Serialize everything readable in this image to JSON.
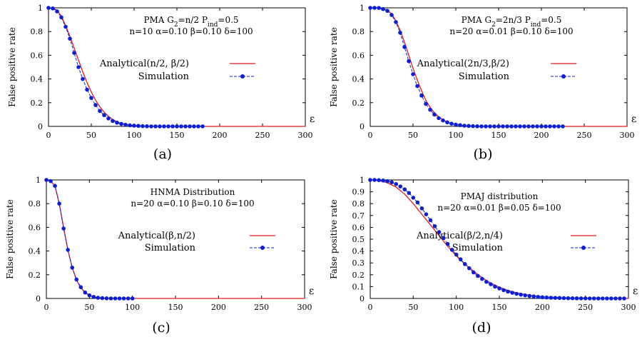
{
  "chart_data": [
    {
      "panel": "a",
      "type": "line",
      "caption": "(a)",
      "annotation_lines": [
        [
          "PMA  G",
          {
            "sub": "2"
          },
          "=n/2 P",
          {
            "sub": "ind"
          },
          "=0.5"
        ],
        [
          "n=10 α=0.10 β=0.10 δ=100"
        ]
      ],
      "xlabel": "ε",
      "ylabel": "False positive rate",
      "xlim": [
        0,
        300
      ],
      "ylim": [
        0,
        1
      ],
      "xticks": [
        0,
        50,
        100,
        150,
        200,
        250,
        300
      ],
      "yticks": [
        0,
        0.2,
        0.4,
        0.6,
        0.8,
        1
      ],
      "ytick_labels": [
        "0",
        "0.2",
        "0.4",
        "0.6",
        "0.8",
        "1"
      ],
      "legend": "right",
      "series": [
        {
          "name": "Analytical(n/2, β/2)",
          "kind": "line",
          "color": "#e31a1c",
          "x": [
            0,
            5,
            10,
            15,
            20,
            25,
            30,
            35,
            40,
            45,
            50,
            55,
            60,
            65,
            70,
            75,
            80,
            85,
            90,
            95,
            100,
            110,
            120,
            140,
            160,
            200,
            250,
            300
          ],
          "y": [
            1.0,
            0.997,
            0.98,
            0.93,
            0.85,
            0.76,
            0.66,
            0.56,
            0.46,
            0.37,
            0.29,
            0.22,
            0.165,
            0.12,
            0.085,
            0.058,
            0.039,
            0.025,
            0.016,
            0.01,
            0.006,
            0.002,
            0.0,
            0.0,
            0.0,
            0.0,
            0.0,
            0.0
          ]
        },
        {
          "name": "Simulation",
          "kind": "points",
          "color": "#0a1fd6",
          "x": [
            0,
            5,
            10,
            15,
            20,
            25,
            30,
            35,
            40,
            45,
            50,
            55,
            60,
            65,
            70,
            75,
            80,
            85,
            90,
            95,
            100,
            105,
            110,
            115,
            120,
            125,
            130,
            135,
            140,
            145,
            150,
            155,
            160,
            165,
            170,
            175,
            180
          ],
          "y": [
            1.0,
            0.995,
            0.97,
            0.92,
            0.84,
            0.74,
            0.62,
            0.5,
            0.4,
            0.31,
            0.24,
            0.18,
            0.13,
            0.095,
            0.067,
            0.046,
            0.031,
            0.021,
            0.014,
            0.009,
            0.006,
            0.004,
            0.002,
            0.001,
            0.0,
            0.0,
            0.0,
            0.0,
            0.0,
            0.0,
            0.0,
            0.0,
            0.0,
            0.0,
            0.0,
            0.0,
            0.0
          ]
        }
      ]
    },
    {
      "panel": "b",
      "type": "line",
      "caption": "(b)",
      "annotation_lines": [
        [
          "PMA  G",
          {
            "sub": "2"
          },
          "=2n/3 P",
          {
            "sub": "ind"
          },
          "=0.5"
        ],
        [
          "n=20 α=0.01 β=0.10 δ=100"
        ]
      ],
      "xlabel": "ε",
      "ylabel": "False positive rate",
      "xlim": [
        0,
        300
      ],
      "ylim": [
        0,
        1
      ],
      "xticks": [
        0,
        50,
        100,
        150,
        200,
        250,
        300
      ],
      "yticks": [
        0,
        0.2,
        0.4,
        0.6,
        0.8,
        1
      ],
      "ytick_labels": [
        "0",
        "0.2",
        "0.4",
        "0.6",
        "0.8",
        "1"
      ],
      "legend": "right",
      "series": [
        {
          "name": "Analytical(2n/3,β/2)",
          "kind": "line",
          "color": "#e31a1c",
          "x": [
            0,
            10,
            20,
            25,
            30,
            35,
            40,
            45,
            50,
            55,
            60,
            65,
            70,
            75,
            80,
            85,
            90,
            95,
            100,
            110,
            120,
            130,
            140,
            160,
            200,
            250,
            300
          ],
          "y": [
            1.0,
            0.998,
            0.98,
            0.95,
            0.89,
            0.81,
            0.71,
            0.6,
            0.49,
            0.39,
            0.3,
            0.22,
            0.16,
            0.115,
            0.08,
            0.055,
            0.036,
            0.023,
            0.015,
            0.006,
            0.002,
            0.0,
            0.0,
            0.0,
            0.0,
            0.0,
            0.0
          ]
        },
        {
          "name": "Simulation",
          "kind": "points",
          "color": "#0a1fd6",
          "x": [
            0,
            5,
            10,
            15,
            20,
            25,
            30,
            35,
            40,
            45,
            50,
            55,
            60,
            65,
            70,
            75,
            80,
            85,
            90,
            95,
            100,
            105,
            110,
            115,
            120,
            125,
            130,
            135,
            140,
            145,
            150,
            155,
            160,
            165,
            170,
            175,
            180,
            185,
            190,
            195,
            200,
            205,
            210,
            215,
            220,
            225
          ],
          "y": [
            1.0,
            1.0,
            0.999,
            0.99,
            0.975,
            0.94,
            0.88,
            0.79,
            0.67,
            0.55,
            0.44,
            0.34,
            0.26,
            0.19,
            0.14,
            0.1,
            0.07,
            0.05,
            0.034,
            0.023,
            0.015,
            0.01,
            0.006,
            0.004,
            0.002,
            0.001,
            0.0,
            0.0,
            0.0,
            0.0,
            0.0,
            0.0,
            0.0,
            0.0,
            0.0,
            0.0,
            0.0,
            0.0,
            0.0,
            0.0,
            0.0,
            0.0,
            0.0,
            0.0,
            0.0,
            0.0
          ]
        }
      ]
    },
    {
      "panel": "c",
      "type": "line",
      "caption": "(c)",
      "annotation_lines": [
        [
          "HNMA Distribution"
        ],
        [
          "n=20 α=0.10 β=0.10 δ=100"
        ]
      ],
      "xlabel": "ε",
      "ylabel": "False positive rate",
      "xlim": [
        0,
        300
      ],
      "ylim": [
        0,
        1
      ],
      "xticks": [
        0,
        50,
        100,
        150,
        200,
        250,
        300
      ],
      "yticks": [
        0,
        0.2,
        0.4,
        0.6,
        0.8,
        1
      ],
      "ytick_labels": [
        "0",
        "0.2",
        "0.4",
        "0.6",
        "0.8",
        "1"
      ],
      "legend": "right",
      "series": [
        {
          "name": "Analytical(β,n/2)",
          "kind": "line",
          "color": "#e31a1c",
          "x": [
            0,
            5,
            10,
            15,
            20,
            25,
            30,
            35,
            40,
            45,
            50,
            55,
            60,
            70,
            80,
            100,
            150,
            200,
            250,
            300
          ],
          "y": [
            1.0,
            0.99,
            0.95,
            0.8,
            0.6,
            0.41,
            0.26,
            0.155,
            0.09,
            0.05,
            0.026,
            0.013,
            0.006,
            0.0015,
            0.0,
            0.0,
            0.0,
            0.0,
            0.0,
            0.0
          ]
        },
        {
          "name": "Simulation",
          "kind": "points",
          "color": "#0a1fd6",
          "x": [
            0,
            5,
            10,
            15,
            20,
            25,
            30,
            35,
            40,
            45,
            50,
            55,
            60,
            65,
            70,
            75,
            80,
            85,
            90,
            95,
            100
          ],
          "y": [
            1.0,
            0.99,
            0.95,
            0.8,
            0.59,
            0.41,
            0.26,
            0.16,
            0.095,
            0.05,
            0.026,
            0.013,
            0.006,
            0.003,
            0.001,
            0.0,
            0.0,
            0.0,
            0.0,
            0.0,
            0.0
          ]
        }
      ]
    },
    {
      "panel": "d",
      "type": "line",
      "caption": "(d)",
      "annotation_lines": [
        [
          "PMAJ distribution"
        ],
        [
          "n=20 α=0.01 β=0.05 δ=100"
        ]
      ],
      "xlabel": "ε",
      "ylabel": "False positive rate",
      "xlim": [
        0,
        300
      ],
      "ylim": [
        0,
        1
      ],
      "xticks": [
        0,
        50,
        100,
        150,
        200,
        250,
        300
      ],
      "yticks": [
        0,
        0.1,
        0.2,
        0.3,
        0.4,
        0.5,
        0.6,
        0.7,
        0.8,
        0.9,
        1
      ],
      "ytick_labels": [
        "0",
        "0.1",
        "0.2",
        "0.3",
        "0.4",
        "0.5",
        "0.6",
        "0.7",
        "0.8",
        "0.9",
        "1"
      ],
      "legend": "right",
      "series": [
        {
          "name": "Analytical(β/2,n/4)",
          "kind": "line",
          "color": "#e31a1c",
          "x": [
            0,
            10,
            20,
            30,
            40,
            50,
            60,
            70,
            80,
            90,
            100,
            110,
            120,
            130,
            140,
            150,
            160,
            170,
            180,
            190,
            200,
            220,
            250,
            300
          ],
          "y": [
            1.0,
            0.995,
            0.975,
            0.94,
            0.88,
            0.8,
            0.71,
            0.62,
            0.53,
            0.44,
            0.36,
            0.29,
            0.23,
            0.175,
            0.13,
            0.095,
            0.068,
            0.048,
            0.033,
            0.022,
            0.014,
            0.006,
            0.001,
            0.0
          ]
        },
        {
          "name": "Simulation",
          "kind": "points",
          "color": "#0a1fd6",
          "x": [
            0,
            5,
            10,
            15,
            20,
            25,
            30,
            35,
            40,
            45,
            50,
            55,
            60,
            65,
            70,
            75,
            80,
            85,
            90,
            95,
            100,
            105,
            110,
            115,
            120,
            125,
            130,
            135,
            140,
            145,
            150,
            155,
            160,
            165,
            170,
            175,
            180,
            185,
            190,
            195,
            200,
            205,
            210,
            215,
            220,
            225,
            230,
            235,
            240,
            245,
            250,
            255,
            260,
            265,
            270,
            275,
            280,
            285,
            290,
            295
          ],
          "y": [
            1.0,
            1.0,
            0.998,
            0.995,
            0.99,
            0.98,
            0.965,
            0.945,
            0.92,
            0.89,
            0.85,
            0.81,
            0.76,
            0.71,
            0.66,
            0.61,
            0.56,
            0.51,
            0.46,
            0.41,
            0.37,
            0.33,
            0.29,
            0.255,
            0.22,
            0.19,
            0.165,
            0.14,
            0.12,
            0.1,
            0.085,
            0.07,
            0.058,
            0.048,
            0.039,
            0.032,
            0.026,
            0.021,
            0.017,
            0.013,
            0.01,
            0.008,
            0.006,
            0.005,
            0.004,
            0.003,
            0.002,
            0.0015,
            0.001,
            0.0008,
            0.0005,
            0.0,
            0.0,
            0.0,
            0.0,
            0.0,
            0.0,
            0.0,
            0.0,
            0.0
          ]
        }
      ]
    }
  ]
}
